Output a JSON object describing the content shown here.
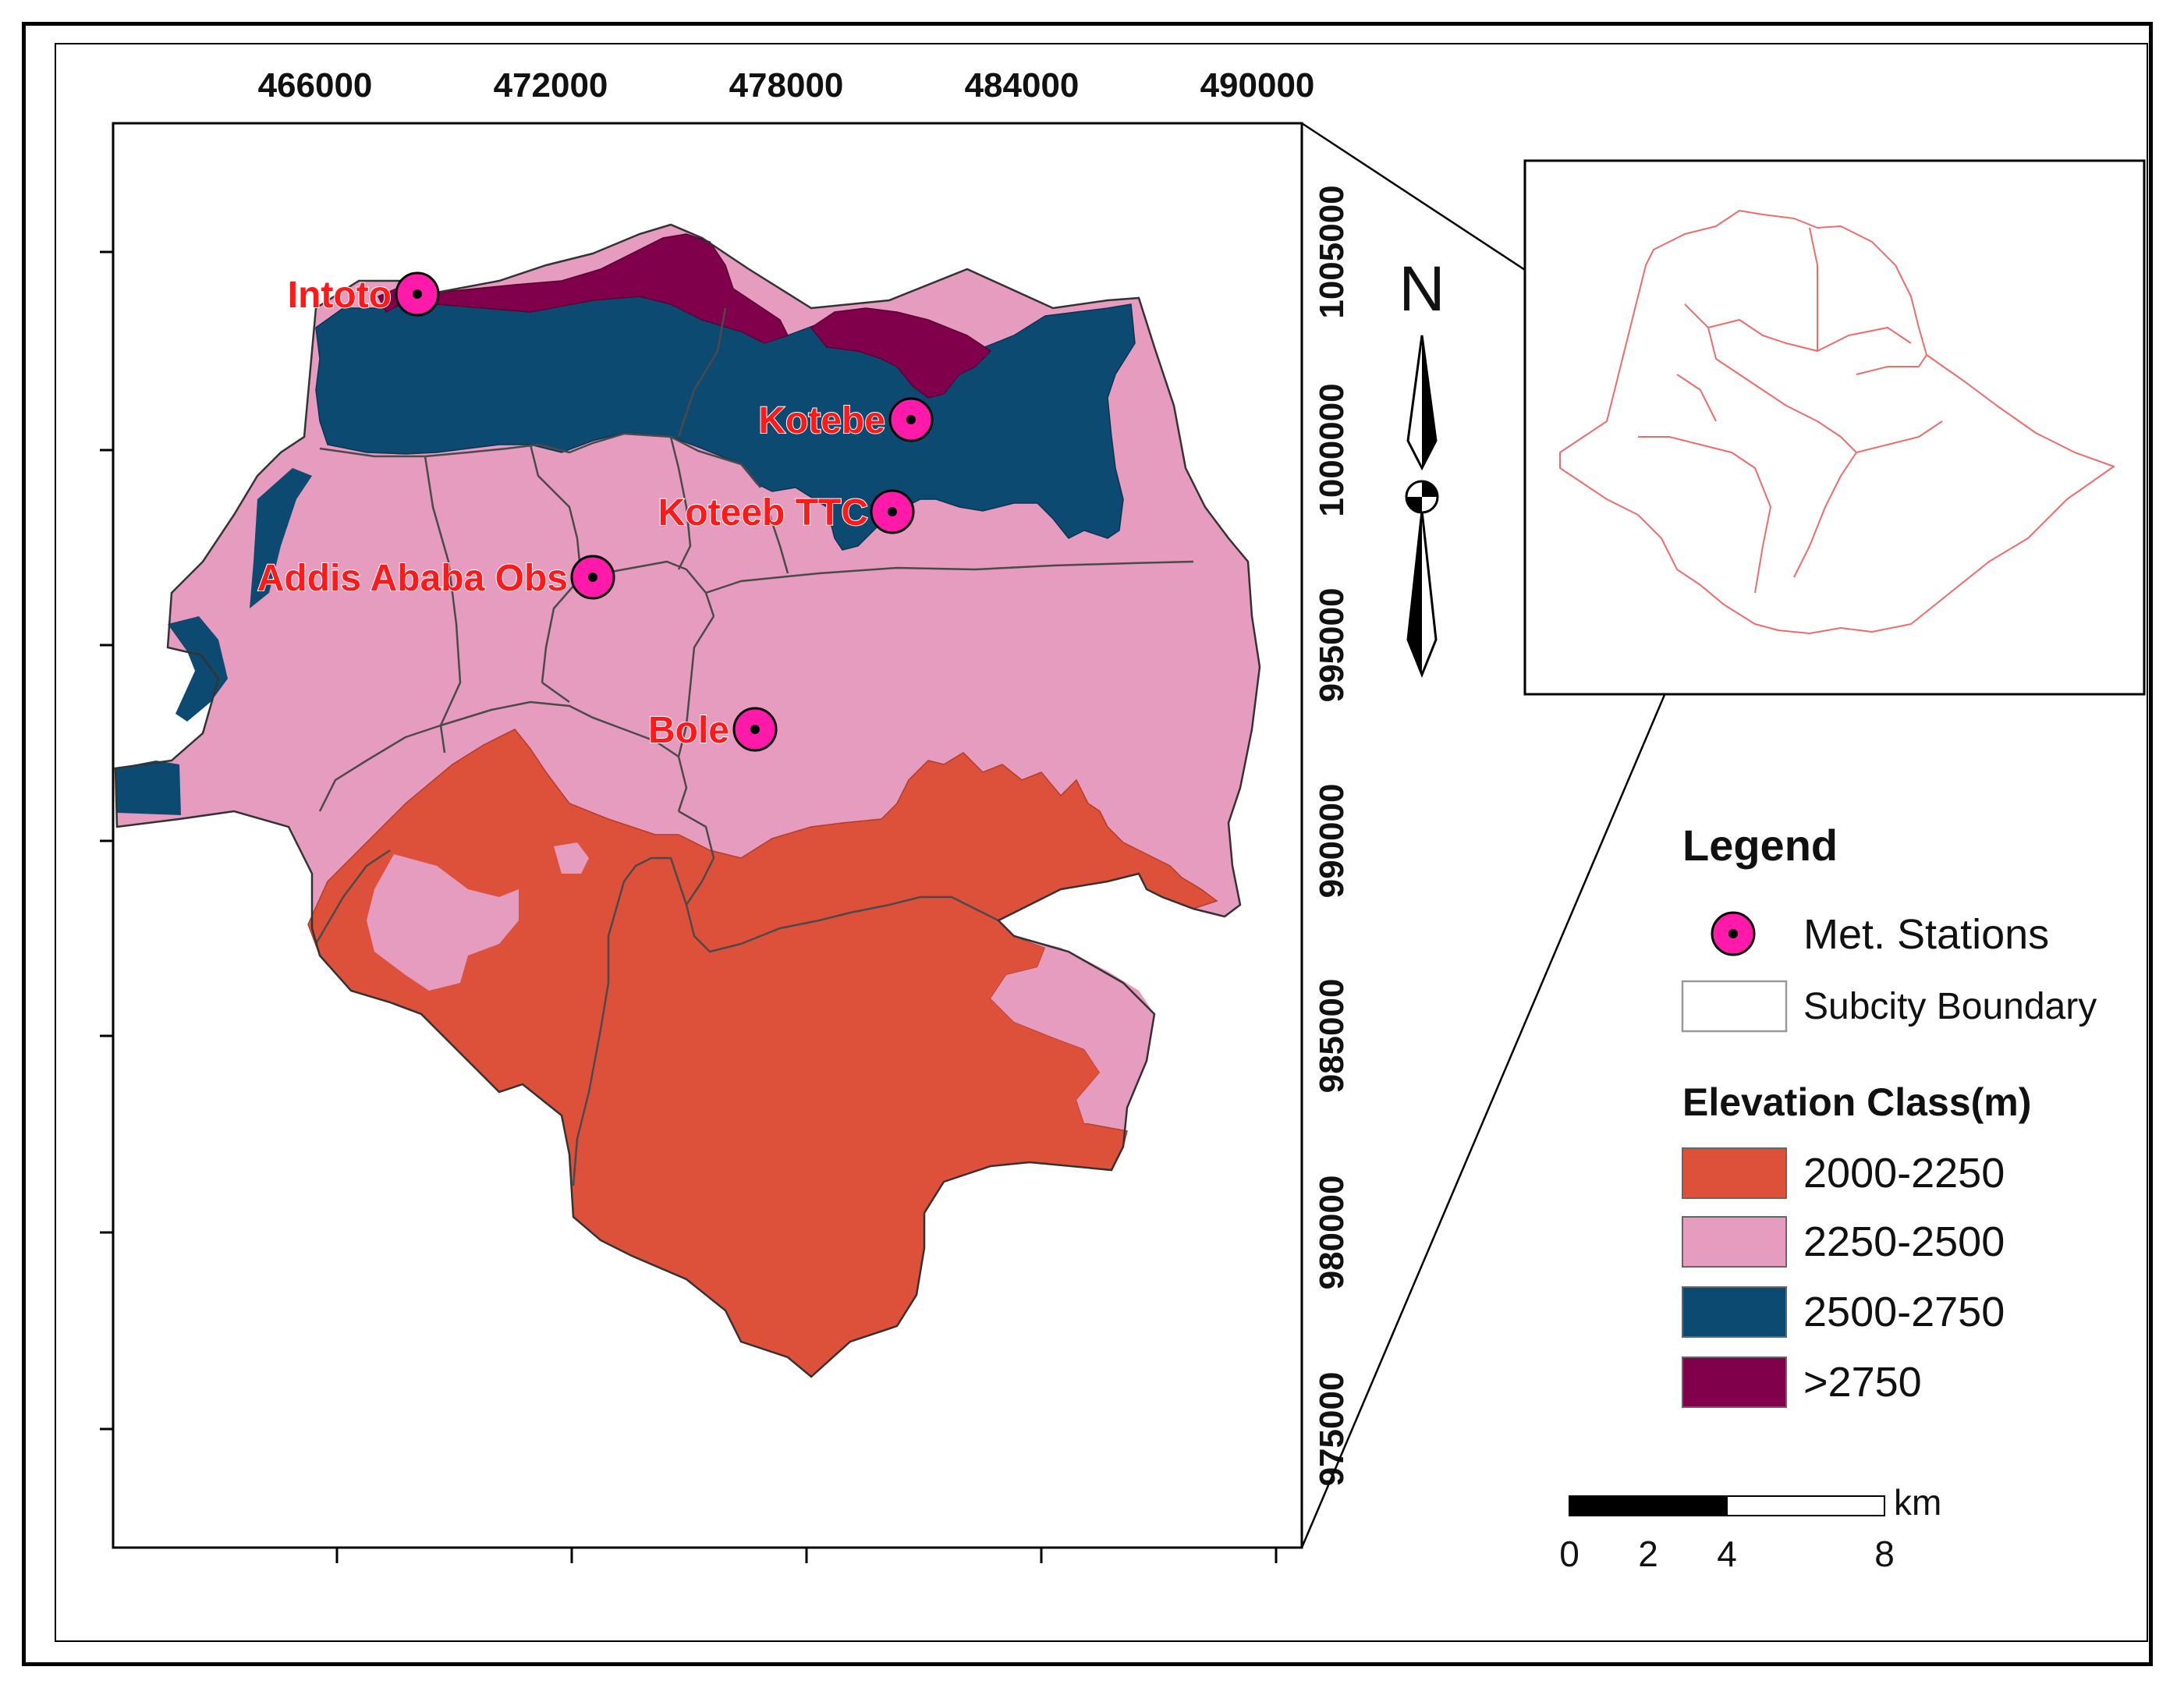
{
  "colors": {
    "elev_2000_2250": "#dd513a",
    "elev_2250_2500": "#e59cbf",
    "elev_2500_2750": "#0d4a72",
    "elev_gt_2750": "#80004c",
    "station_fill": "#ff1aaa",
    "station_label": "#ff1a1a",
    "inset_country": "#f06b6b"
  },
  "grid": {
    "x_ticks": [
      "466000",
      "472000",
      "478000",
      "484000",
      "490000"
    ],
    "y_ticks": [
      "1005000",
      "1000000",
      "995000",
      "990000",
      "985000",
      "980000",
      "975000"
    ]
  },
  "stations": [
    {
      "name": "Intoto"
    },
    {
      "name": "Kotebe"
    },
    {
      "name": "Koteeb TTC"
    },
    {
      "name": "Addis Ababa Obs"
    },
    {
      "name": "Bole"
    }
  ],
  "north_arrow": {
    "label": "N"
  },
  "legend": {
    "title": "Legend",
    "stations_label": "Met. Stations",
    "boundary_label": "Subcity Boundary",
    "elevation_title": "Elevation Class(m)",
    "classes": [
      {
        "label": "2000-2250",
        "color": "#dd513a"
      },
      {
        "label": "2250-2500",
        "color": "#e59cbf"
      },
      {
        "label": "2500-2750",
        "color": "#0d4a72"
      },
      {
        "label": ">2750",
        "color": "#80004c"
      }
    ]
  },
  "scale_bar": {
    "unit": "km",
    "labels": [
      "0",
      "2",
      "4",
      "8"
    ]
  }
}
